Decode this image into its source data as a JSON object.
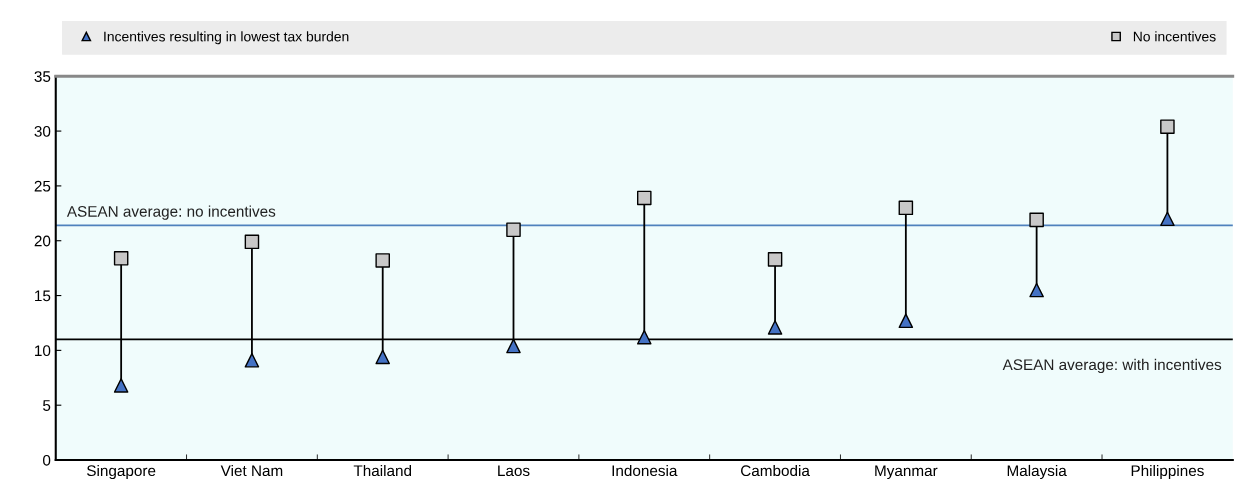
{
  "chart_data": {
    "type": "scatter",
    "categories": [
      "Singapore",
      "Viet Nam",
      "Thailand",
      "Laos",
      "Indonesia",
      "Cambodia",
      "Myanmar",
      "Malaysia",
      "Philippines"
    ],
    "series": [
      {
        "name": "Incentives resulting in lowest tax burden",
        "color": "#4472c4",
        "marker": "triangle",
        "values": [
          6.8,
          9.1,
          9.4,
          10.4,
          11.2,
          12.1,
          12.7,
          15.5,
          22.0
        ]
      },
      {
        "name": "No incentives",
        "color": "#c8c8c8",
        "marker": "square",
        "values": [
          18.4,
          19.9,
          18.2,
          21.0,
          23.9,
          18.3,
          23.0,
          21.9,
          30.4
        ]
      }
    ],
    "ylim": [
      0,
      35
    ],
    "yticks": [
      0,
      5,
      10,
      15,
      20,
      25,
      30,
      35
    ],
    "ref_lines": [
      {
        "axis": "y",
        "value": 21.4,
        "label": "ASEAN average: no incentives",
        "color": "#4f81bd"
      },
      {
        "axis": "y",
        "value": 11.0,
        "label": "ASEAN average: with incentives",
        "color": "#000000"
      }
    ],
    "legend": "top",
    "grid": false
  }
}
